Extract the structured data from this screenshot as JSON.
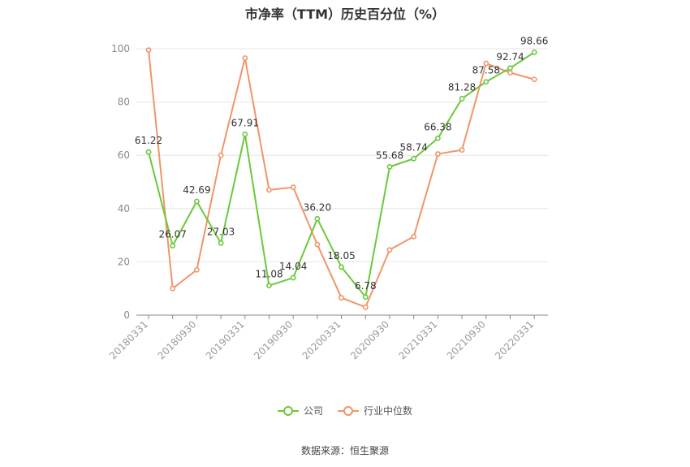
{
  "title": "市净率（TTM）历史百分位（%）",
  "source": "数据来源：恒生聚源",
  "colors": {
    "company": "#6cc83b",
    "industry": "#f0956a"
  },
  "chart_data": {
    "type": "line",
    "title": "市净率（TTM）历史百分位（%）",
    "ylim": [
      0,
      100
    ],
    "yticks": [
      0,
      20,
      40,
      60,
      80,
      100
    ],
    "grid": true,
    "legend_position": "bottom",
    "x": [
      "20180331",
      "20180630",
      "20180930",
      "20181231",
      "20190331",
      "20190630",
      "20190930",
      "20191231",
      "20200331",
      "20200630",
      "20200930",
      "20201231",
      "20210331",
      "20210630",
      "20210930",
      "20211231",
      "20220331"
    ],
    "xtick_labels": [
      "20180331",
      "20180930",
      "20190331",
      "20190930",
      "20200331",
      "20200930",
      "20210331",
      "20210930",
      "20220331"
    ],
    "series": [
      {
        "name": "公司",
        "values": [
          61.22,
          26.07,
          42.69,
          27.03,
          67.91,
          11.08,
          14.04,
          36.2,
          18.05,
          6.78,
          55.68,
          58.74,
          66.38,
          81.28,
          87.58,
          92.74,
          98.66
        ],
        "labels": [
          "61.22",
          "26.07",
          "42.69",
          "27.03",
          "67.91",
          "11.08",
          "14.04",
          "36.20",
          "18.05",
          "6.78",
          "55.68",
          "58.74",
          "66.38",
          "81.28",
          "87.58",
          "92.74",
          "98.66"
        ]
      },
      {
        "name": "行业中位数",
        "values": [
          99.5,
          10.0,
          17.0,
          60.0,
          96.5,
          47.0,
          48.0,
          26.5,
          6.5,
          3.0,
          24.5,
          29.5,
          60.5,
          62.0,
          94.5,
          91.0,
          88.5
        ]
      }
    ]
  }
}
